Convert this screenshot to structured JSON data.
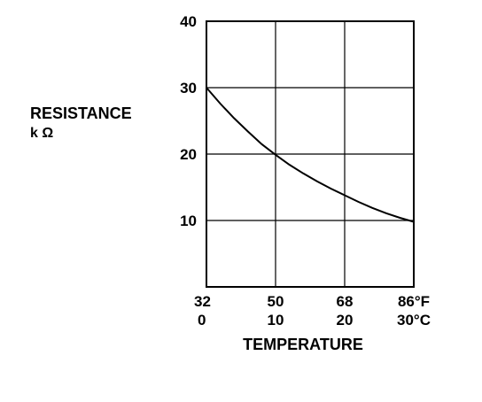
{
  "chart_data": {
    "type": "line",
    "title": "",
    "ylabel": "RESISTANCE",
    "ylabel_unit": "k Ω",
    "xlabel": "TEMPERATURE",
    "x_ticks_f": [
      "32",
      "50",
      "68",
      "86°F"
    ],
    "x_ticks_c": [
      "0",
      "10",
      "20",
      "30°C"
    ],
    "y_ticks": [
      "10",
      "20",
      "30",
      "40"
    ],
    "xlim_c": [
      0,
      30
    ],
    "ylim": [
      0,
      40
    ],
    "grid": true,
    "series": [
      {
        "x_c": [
          0,
          2,
          4,
          6,
          8,
          10,
          12,
          14,
          16,
          18,
          20,
          22,
          24,
          26,
          28,
          30
        ],
        "values": [
          30.0,
          27.6,
          25.4,
          23.4,
          21.5,
          19.9,
          18.4,
          17.1,
          15.9,
          14.8,
          13.8,
          12.8,
          11.9,
          11.1,
          10.4,
          9.8
        ]
      }
    ]
  }
}
